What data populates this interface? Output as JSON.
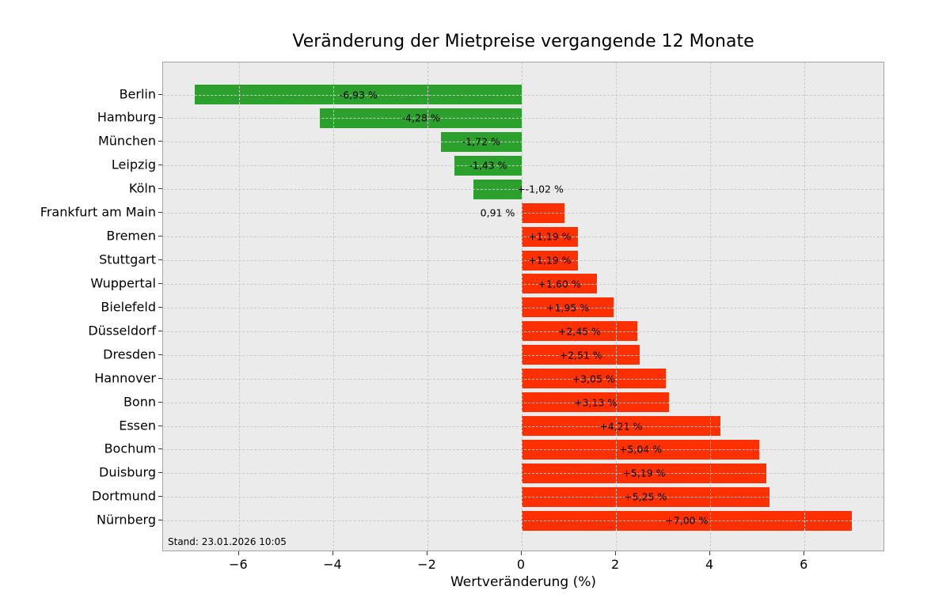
{
  "chart_data": {
    "type": "bar",
    "orientation": "horizontal",
    "title": "Veränderung der Mietpreise vergangende 12 Monate",
    "xlabel": "Wertveränderung (%)",
    "ylabel": "",
    "categories": [
      "Berlin",
      "Hamburg",
      "München",
      "Leipzig",
      "Köln",
      "Frankfurt am Main",
      "Bremen",
      "Stuttgart",
      "Wuppertal",
      "Bielefeld",
      "Düsseldorf",
      "Dresden",
      "Hannover",
      "Bonn",
      "Essen",
      "Bochum",
      "Duisburg",
      "Dortmund",
      "Nürnberg"
    ],
    "values": [
      -6.93,
      -4.28,
      -1.72,
      -1.43,
      -1.02,
      0.91,
      1.19,
      1.19,
      1.6,
      1.95,
      2.45,
      2.51,
      3.05,
      3.13,
      4.21,
      5.04,
      5.19,
      5.25,
      7.0
    ],
    "bar_labels": [
      "-6,93 %",
      "-4,28 %",
      "-1,72 %",
      "-1,43 %",
      "+-1,02 %",
      "0,91 %",
      "+1,19 %",
      "+1,19 %",
      "+1,60 %",
      "+1,95 %",
      "+2,45 %",
      "+2,51 %",
      "+3,05 %",
      "+3,13 %",
      "+4,21 %",
      "+5,04 %",
      "+5,19 %",
      "+5,25 %",
      "+7,00 %"
    ],
    "label_center_overrides": {
      "4": 0.395,
      "5": -0.513
    },
    "xlim": [
      -7.61,
      7.71
    ],
    "xticks": [
      -6,
      -4,
      -2,
      0,
      2,
      4,
      6
    ],
    "xtick_labels": [
      "−6",
      "−4",
      "−2",
      "0",
      "2",
      "4",
      "6"
    ],
    "grid": {
      "style": "dashed",
      "axes": "both",
      "drawn_over_bars": true
    },
    "legend": null,
    "annotation": "Stand: 23.01.2026 10:05",
    "colors": {
      "negative_bar": "#2ca02c",
      "positive_bar": "#ff3000",
      "plot_bg": "#ebebeb",
      "grid": "#c9c9c9",
      "fig_bg": "#ffffff",
      "text": "#000000"
    }
  }
}
